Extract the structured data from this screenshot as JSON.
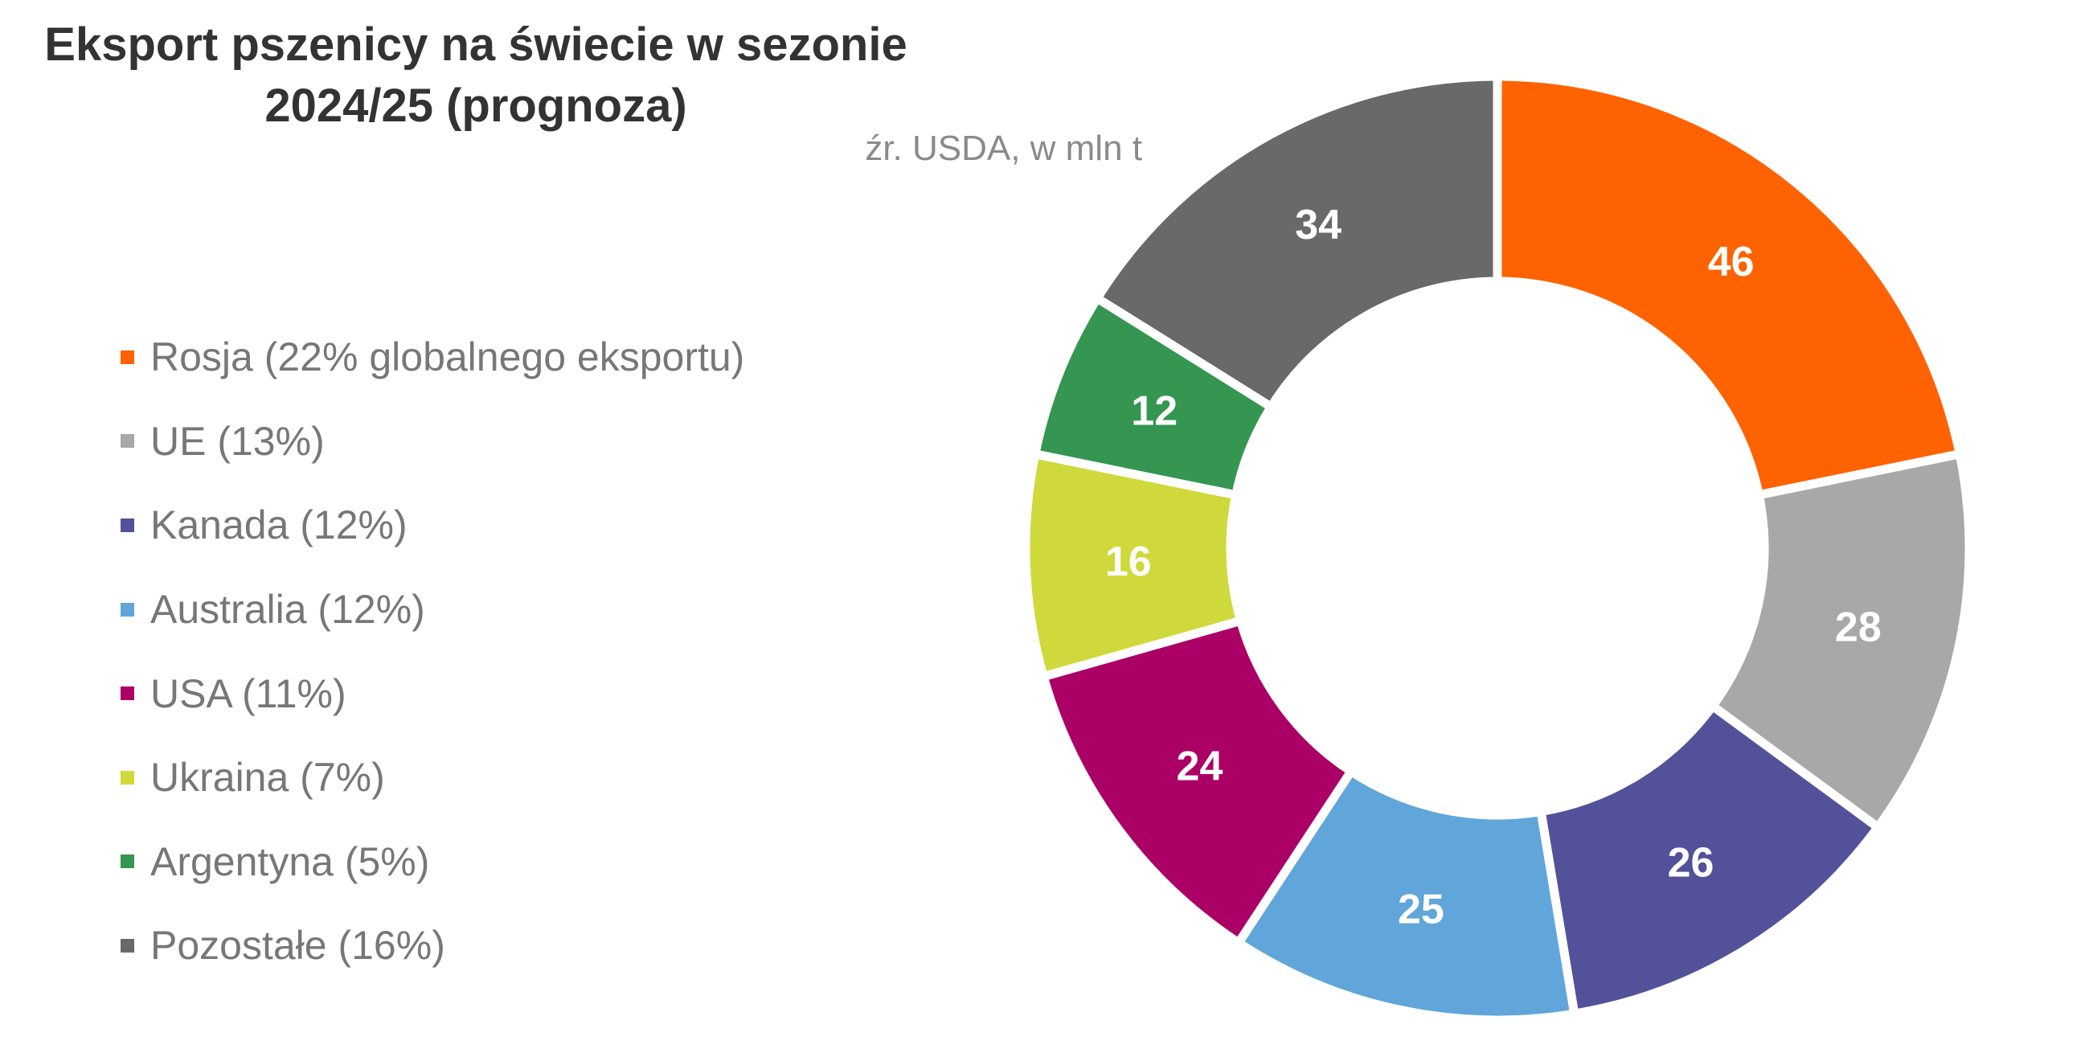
{
  "chart_data": {
    "type": "pie",
    "variant": "donut",
    "title": "Eksport pszenicy na świecie w sezonie 2024/25 (prognoza)",
    "title_lines": [
      "Eksport pszenicy na świecie w sezonie",
      "2024/25 (prognoza)"
    ],
    "subtitle": "źr. USDA, w mln t",
    "legend_position": "left",
    "slices": [
      {
        "legend": "Rosja (22% globalnego eksportu)",
        "value": 46,
        "label": "46",
        "color": "#FF6200"
      },
      {
        "legend": "UE (13%)",
        "value": 28,
        "label": "28",
        "color": "#A8A8A8"
      },
      {
        "legend": "Kanada (12%)",
        "value": 26,
        "label": "26",
        "color": "#525199"
      },
      {
        "legend": "Australia (12%)",
        "value": 25,
        "label": "25",
        "color": "#60A6DA"
      },
      {
        "legend": "USA (11%)",
        "value": 24,
        "label": "24",
        "color": "#AB0066"
      },
      {
        "legend": "Ukraina (7%)",
        "value": 16,
        "label": "16",
        "color": "#D0D93C"
      },
      {
        "legend": "Argentyna (5%)",
        "value": 12,
        "label": "12",
        "color": "#349651"
      },
      {
        "legend": "Pozostałe (16%)",
        "value": 34,
        "label": "34",
        "color": "#696969"
      }
    ]
  }
}
